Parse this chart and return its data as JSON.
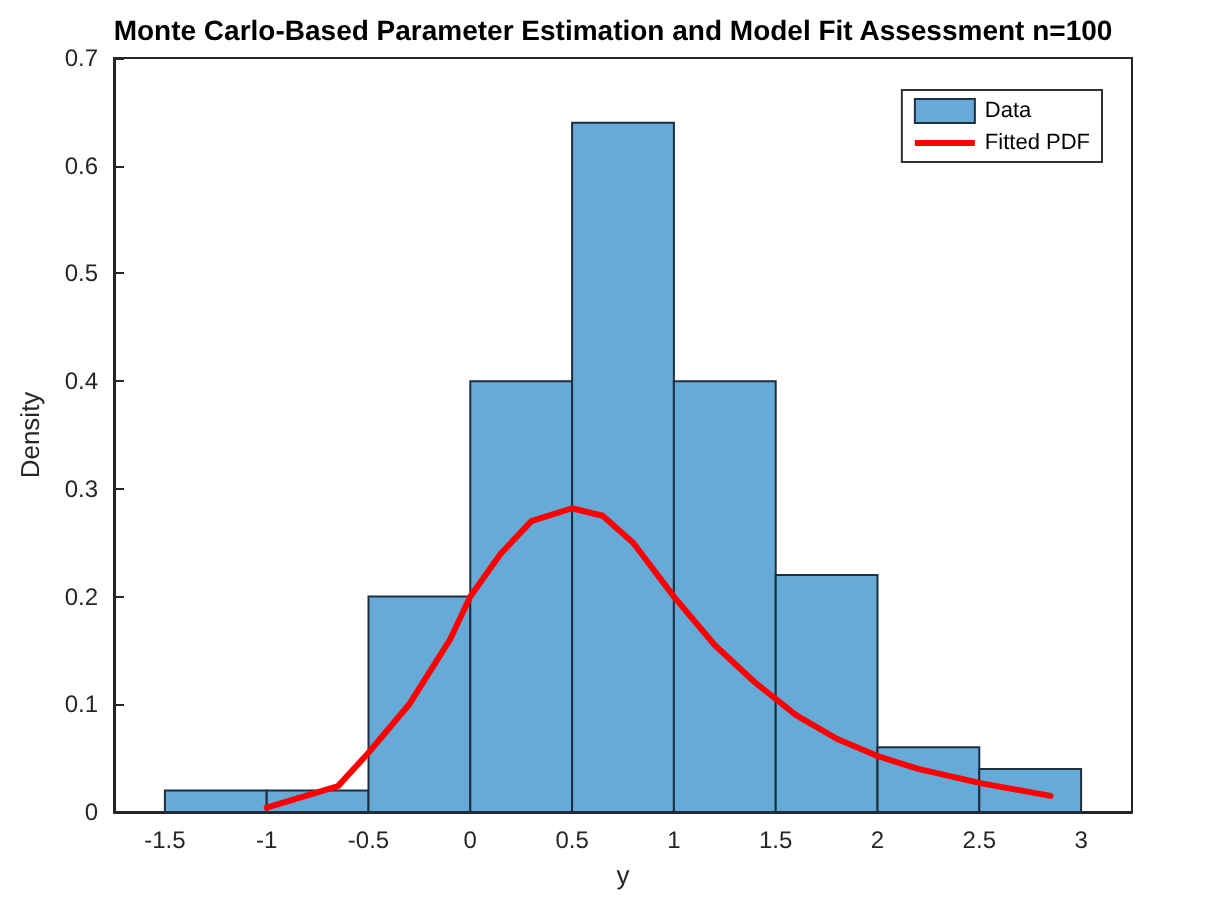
{
  "chart_data": {
    "type": "histogram",
    "title": "Monte Carlo-Based Parameter Estimation and Model Fit Assessment n=100",
    "xlabel": "y",
    "ylabel": "Density",
    "bins": [
      -1.5,
      -1,
      -0.5,
      0,
      0.5,
      1,
      1.5,
      2,
      2.5,
      3
    ],
    "series": [
      {
        "name": "Data",
        "color": "#66aad8",
        "values": [
          0.02,
          0.02,
          0.2,
          0.4,
          0.64,
          0.4,
          0.22,
          0.06,
          0.04
        ]
      },
      {
        "name": "Fitted PDF",
        "type": "line",
        "color": "#ff0000",
        "x": [
          -1,
          -0.65,
          -0.5,
          -0.3,
          -0.1,
          0,
          0.15,
          0.3,
          0.5,
          0.65,
          0.8,
          1,
          1.2,
          1.4,
          1.6,
          1.8,
          2,
          2.2,
          2.5,
          2.85
        ],
        "values": [
          0.004,
          0.024,
          0.055,
          0.1,
          0.16,
          0.2,
          0.24,
          0.27,
          0.282,
          0.275,
          0.25,
          0.2,
          0.155,
          0.12,
          0.09,
          0.068,
          0.052,
          0.04,
          0.027,
          0.015
        ]
      }
    ],
    "xlim": [
      -1.75,
      3.25
    ],
    "xticks": [
      -1.5,
      -1,
      -0.5,
      0,
      0.5,
      1,
      1.5,
      2,
      2.5,
      3
    ],
    "ylim": [
      0,
      0.7
    ],
    "yticks": [
      0,
      0.1,
      0.2,
      0.3,
      0.4,
      0.5,
      0.6,
      0.7
    ],
    "grid": false,
    "legend": "top right",
    "marker": "none",
    "line_style": "solid"
  }
}
